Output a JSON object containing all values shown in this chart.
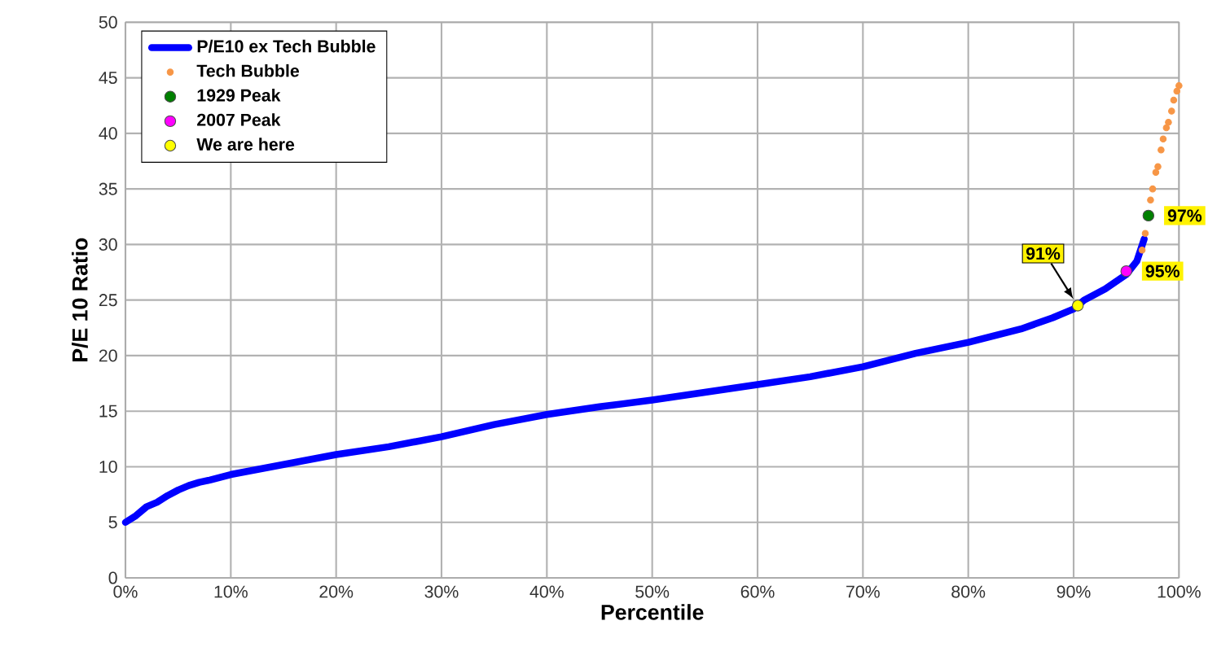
{
  "chart_data": {
    "type": "line",
    "xlabel": "Percentile",
    "ylabel": "P/E 10 Ratio",
    "xlim": [
      0,
      100
    ],
    "ylim": [
      0,
      50
    ],
    "xticks": [
      {
        "value": 0,
        "label": "0%"
      },
      {
        "value": 10,
        "label": "10%"
      },
      {
        "value": 20,
        "label": "20%"
      },
      {
        "value": 30,
        "label": "30%"
      },
      {
        "value": 40,
        "label": "40%"
      },
      {
        "value": 50,
        "label": "50%"
      },
      {
        "value": 60,
        "label": "60%"
      },
      {
        "value": 70,
        "label": "70%"
      },
      {
        "value": 80,
        "label": "80%"
      },
      {
        "value": 90,
        "label": "90%"
      },
      {
        "value": 100,
        "label": "100%"
      }
    ],
    "yticks": [
      0,
      5,
      10,
      15,
      20,
      25,
      30,
      35,
      40,
      45,
      50
    ],
    "grid": true,
    "legend": "top left",
    "series": [
      {
        "name": "P/E10 ex Tech Bubble",
        "color": "#0000ff",
        "x": [
          0,
          1,
          2,
          3,
          4,
          5,
          6,
          7,
          8,
          10,
          15,
          20,
          25,
          30,
          35,
          40,
          45,
          50,
          55,
          60,
          65,
          70,
          75,
          80,
          85,
          88,
          90,
          91,
          93,
          95,
          96,
          96.7
        ],
        "values": [
          5.0,
          5.6,
          6.4,
          6.8,
          7.4,
          7.9,
          8.3,
          8.6,
          8.8,
          9.3,
          10.2,
          11.1,
          11.8,
          12.7,
          13.8,
          14.7,
          15.4,
          16.0,
          16.7,
          17.4,
          18.1,
          19.0,
          20.2,
          21.2,
          22.4,
          23.4,
          24.2,
          25.0,
          26.0,
          27.3,
          28.5,
          30.5
        ]
      },
      {
        "name": "Tech Bubble",
        "type": "scatter",
        "marker": "circle",
        "color": "#f79646",
        "x": [
          96.5,
          96.8,
          97.3,
          97.5,
          97.8,
          98,
          98.3,
          98.5,
          98.8,
          99,
          99.3,
          99.5,
          99.8,
          100
        ],
        "values": [
          29.5,
          31,
          34,
          35,
          36.5,
          37,
          38.5,
          39.5,
          40.5,
          41,
          42,
          43,
          43.8,
          44.3
        ]
      },
      {
        "name": "1929 Peak",
        "type": "scatter",
        "marker": "circle",
        "color": "#008000",
        "x": [
          97.1
        ],
        "values": [
          32.6
        ]
      },
      {
        "name": "2007 Peak",
        "type": "scatter",
        "marker": "circle",
        "color": "#ff00ff",
        "x": [
          95.0
        ],
        "values": [
          27.6
        ]
      },
      {
        "name": "We are here",
        "type": "scatter",
        "marker": "circle",
        "color": "#ffff00",
        "x": [
          90.4
        ],
        "values": [
          24.5
        ]
      }
    ],
    "annotations": [
      {
        "text": "91%",
        "x": 90.4,
        "y": 24.5
      },
      {
        "text": "95%",
        "x": 95.0,
        "y": 27.6
      },
      {
        "text": "97%",
        "x": 97.1,
        "y": 32.6
      }
    ]
  }
}
